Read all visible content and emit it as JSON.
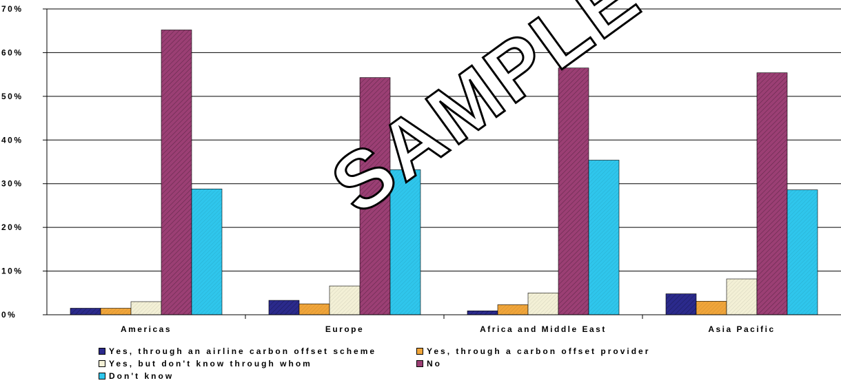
{
  "chart_data": {
    "type": "bar",
    "categories": [
      "Americas",
      "Europe",
      "Africa and Middle East",
      "Asia Pacific"
    ],
    "series": [
      {
        "name": "Yes, through an airline carbon offset scheme",
        "values": [
          1.5,
          3.3,
          0.9,
          4.8
        ],
        "color": "#2b2a8c"
      },
      {
        "name": "Yes, through a carbon offset provider",
        "values": [
          1.5,
          2.5,
          2.3,
          3.1
        ],
        "color": "#f0a53a"
      },
      {
        "name": "Yes, but don't know through whom",
        "values": [
          3.0,
          6.6,
          5.0,
          8.2
        ],
        "color": "#f3f0d6"
      },
      {
        "name": "No",
        "values": [
          65.2,
          54.3,
          56.5,
          55.4
        ],
        "color": "#9b3f74"
      },
      {
        "name": "Don't know",
        "values": [
          28.8,
          33.2,
          35.4,
          28.6
        ],
        "color": "#2fc6ec"
      }
    ],
    "yticks": [
      "0%",
      "10%",
      "20%",
      "30%",
      "40%",
      "50%",
      "60%",
      "70%"
    ],
    "ylim": [
      0,
      70
    ],
    "grid": true,
    "legend_position": "bottom"
  },
  "watermark": "SAMPLE"
}
